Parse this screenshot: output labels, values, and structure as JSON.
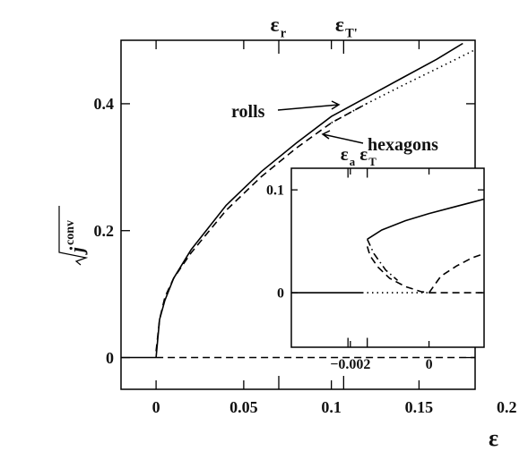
{
  "chart_data": [
    {
      "type": "line",
      "x_label": "ε",
      "y_label": "j",
      "y_label_superscript": "conv",
      "xlim": [
        -0.02,
        0.182
      ],
      "ylim": [
        -0.05,
        0.5
      ],
      "xticks": [
        0,
        0.05,
        0.1,
        0.15,
        0.2
      ],
      "yticks": [
        0,
        0.2,
        0.4
      ],
      "top_markers": [
        {
          "value": 0.07,
          "symbol": "ε",
          "subscript": "r"
        },
        {
          "value": 0.107,
          "symbol": "ε",
          "subscript": "T'"
        }
      ],
      "annotations": [
        "rolls",
        "hexagons"
      ],
      "series": [
        {
          "color": "#000",
          "dash": "solid",
          "x": [
            -0.02,
            0
          ],
          "values": [
            0,
            0
          ]
        },
        {
          "color": "#000",
          "dash": "dashed",
          "x": [
            0,
            0.182
          ],
          "values": [
            0,
            0
          ]
        },
        {
          "color": "#000",
          "dash": "solid",
          "x": [
            0,
            0.002,
            0.005,
            0.01,
            0.02,
            0.04,
            0.06,
            0.08,
            0.1,
            0.12,
            0.14,
            0.16,
            0.175
          ],
          "values": [
            0,
            0.06,
            0.09,
            0.125,
            0.17,
            0.24,
            0.293,
            0.338,
            0.38,
            0.41,
            0.44,
            0.47,
            0.495
          ]
        },
        {
          "color": "#000",
          "dash": "dashed",
          "x": [
            0,
            0.002,
            0.005,
            0.01,
            0.02,
            0.04,
            0.06,
            0.08,
            0.1,
            0.12
          ],
          "values": [
            0.01,
            0.06,
            0.095,
            0.125,
            0.165,
            0.232,
            0.285,
            0.33,
            0.37,
            0.4
          ]
        },
        {
          "color": "#000",
          "dash": "dotted",
          "x": [
            0.1,
            0.12,
            0.14,
            0.16,
            0.182
          ],
          "values": [
            0.37,
            0.4,
            0.428,
            0.455,
            0.485
          ]
        }
      ]
    },
    {
      "type": "line",
      "xlim": [
        -0.0035,
        0.0014
      ],
      "ylim": [
        -0.053,
        0.121
      ],
      "xticks": [
        {
          "value": -0.002,
          "label": "−0.002"
        },
        0
      ],
      "yticks": [
        0,
        0.1
      ],
      "top_markers": [
        {
          "value": -0.00206,
          "symbol": "ε",
          "subscript": "a"
        },
        {
          "value": -0.00157,
          "symbol": "ε",
          "subscript": "T"
        }
      ],
      "series": [
        {
          "color": "#000",
          "dash": "solid",
          "x": [
            -0.0035,
            -0.0017
          ],
          "values": [
            0,
            0
          ]
        },
        {
          "color": "#000",
          "dash": "dotted",
          "x": [
            -0.0017,
            0
          ],
          "values": [
            0,
            0
          ]
        },
        {
          "color": "#000",
          "dash": "dashed",
          "x": [
            0,
            0.0014
          ],
          "values": [
            0,
            0
          ]
        },
        {
          "color": "#000",
          "dash": "solid",
          "x": [
            -0.00157,
            -0.0012,
            -0.0006,
            0,
            0.0006,
            0.0012,
            0.0014
          ],
          "values": [
            0.052,
            0.061,
            0.07,
            0.077,
            0.083,
            0.089,
            0.091
          ]
        },
        {
          "color": "#000",
          "dash": "dashdot",
          "x": [
            -0.00157,
            -0.0014,
            -0.0011,
            -0.0008
          ],
          "values": [
            0.052,
            0.038,
            0.022,
            0.012
          ]
        },
        {
          "color": "#000",
          "dash": "dashed",
          "x": [
            -0.00157,
            -0.0015,
            -0.0013,
            -0.001,
            -0.0006,
            -0.0002,
            0
          ],
          "values": [
            0.045,
            0.036,
            0.025,
            0.014,
            0.006,
            0.001,
            0
          ]
        },
        {
          "color": "#000",
          "dash": "dashed",
          "x": [
            0,
            0.0003,
            0.0007,
            0.0011,
            0.0014
          ],
          "values": [
            0,
            0.016,
            0.026,
            0.034,
            0.038
          ]
        }
      ]
    }
  ]
}
